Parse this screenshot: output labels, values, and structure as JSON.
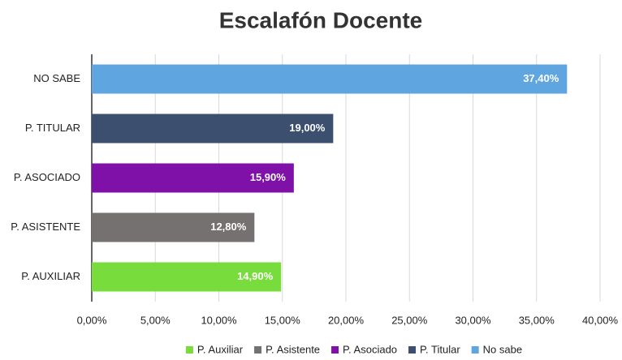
{
  "chart_data": {
    "type": "bar",
    "orientation": "horizontal",
    "title": "Escalafón Docente",
    "categories": [
      "P. AUXILIAR",
      "P. ASISTENTE",
      "P. ASOCIADO",
      "P. TITULAR",
      "NO SABE"
    ],
    "series": [
      {
        "name": "P. Auxiliar",
        "color": "#78dc3c",
        "values": [
          14.9,
          null,
          null,
          null,
          null
        ],
        "value_labels": [
          "14,90%",
          null,
          null,
          null,
          null
        ]
      },
      {
        "name": "P. Asistente",
        "color": "#767171",
        "values": [
          null,
          12.8,
          null,
          null,
          null
        ],
        "value_labels": [
          null,
          "12,80%",
          null,
          null,
          null
        ]
      },
      {
        "name": "P. Asociado",
        "color": "#7f10a8",
        "values": [
          null,
          null,
          15.9,
          null,
          null
        ],
        "value_labels": [
          null,
          null,
          "15,90%",
          null,
          null
        ]
      },
      {
        "name": "P. Titular",
        "color": "#3d4f6e",
        "values": [
          null,
          null,
          null,
          19.0,
          null
        ],
        "value_labels": [
          null,
          null,
          null,
          "19,00%",
          null
        ]
      },
      {
        "name": "No sabe",
        "color": "#5fa5e0",
        "values": [
          null,
          null,
          null,
          null,
          37.4
        ],
        "value_labels": [
          null,
          null,
          null,
          null,
          "37,40%"
        ]
      }
    ],
    "xlim": [
      0,
      40
    ],
    "xticks": [
      {
        "value": 0,
        "label": "0,00%"
      },
      {
        "value": 5,
        "label": "5,00%"
      },
      {
        "value": 10,
        "label": "10,00%"
      },
      {
        "value": 15,
        "label": "15,00%"
      },
      {
        "value": 20,
        "label": "20,00%"
      },
      {
        "value": 25,
        "label": "25,00%"
      },
      {
        "value": 30,
        "label": "30,00%"
      },
      {
        "value": 35,
        "label": "35,00%"
      },
      {
        "value": 40,
        "label": "40,00%"
      }
    ],
    "grid": true,
    "legend": "bottom"
  }
}
